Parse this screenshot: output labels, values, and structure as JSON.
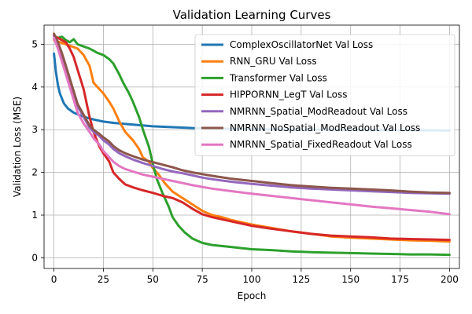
{
  "chart_data": {
    "type": "line",
    "title": "Validation Learning Curves",
    "xlabel": "Epoch",
    "ylabel": "Validation Loss (MSE)",
    "xlim": [
      -5,
      205
    ],
    "ylim": [
      -0.25,
      5.45
    ],
    "xticks": [
      0,
      25,
      50,
      75,
      100,
      125,
      150,
      175,
      200
    ],
    "yticks": [
      0,
      1,
      2,
      3,
      4,
      5
    ],
    "grid": true,
    "legend_position": "upper right",
    "series": [
      {
        "name": "ComplexOscillatorNet Val Loss",
        "color": "#1f77b4",
        "x": [
          0,
          1,
          2,
          3,
          5,
          7,
          10,
          13,
          16,
          20,
          25,
          30,
          40,
          50,
          60,
          70,
          80,
          90,
          100,
          120,
          140,
          160,
          180,
          200
        ],
        "y": [
          4.78,
          4.35,
          4.05,
          3.85,
          3.62,
          3.5,
          3.4,
          3.34,
          3.29,
          3.24,
          3.19,
          3.16,
          3.12,
          3.08,
          3.06,
          3.04,
          3.03,
          3.02,
          3.01,
          3.0,
          3.0,
          2.99,
          2.99,
          2.98
        ]
      },
      {
        "name": "RNN_GRU Val Loss",
        "color": "#ff7f0e",
        "x": [
          0,
          3,
          6,
          9,
          12,
          15,
          18,
          20,
          22,
          25,
          28,
          30,
          33,
          36,
          40,
          43,
          45,
          48,
          50,
          53,
          56,
          60,
          65,
          70,
          75,
          80,
          85,
          90,
          100,
          110,
          120,
          130,
          140,
          150,
          160,
          170,
          180,
          190,
          200
        ],
        "y": [
          5.1,
          5.05,
          5.0,
          4.95,
          4.9,
          4.75,
          4.5,
          4.1,
          4.0,
          3.85,
          3.65,
          3.5,
          3.2,
          2.95,
          2.75,
          2.55,
          2.35,
          2.25,
          2.1,
          1.95,
          1.75,
          1.55,
          1.4,
          1.25,
          1.1,
          1.0,
          0.95,
          0.88,
          0.78,
          0.7,
          0.62,
          0.56,
          0.5,
          0.47,
          0.45,
          0.43,
          0.41,
          0.4,
          0.38
        ]
      },
      {
        "name": "Transformer Val Loss",
        "color": "#2ca02c",
        "x": [
          0,
          2,
          4,
          6,
          8,
          10,
          12,
          15,
          18,
          20,
          22,
          25,
          28,
          30,
          33,
          35,
          38,
          40,
          43,
          45,
          48,
          50,
          52,
          55,
          58,
          60,
          63,
          66,
          70,
          75,
          80,
          90,
          100,
          110,
          120,
          130,
          140,
          150,
          160,
          170,
          180,
          190,
          200
        ],
        "y": [
          5.2,
          5.15,
          5.18,
          5.1,
          5.05,
          5.12,
          5.0,
          4.95,
          4.9,
          4.85,
          4.8,
          4.75,
          4.65,
          4.55,
          4.3,
          4.1,
          3.85,
          3.65,
          3.3,
          3.0,
          2.6,
          2.2,
          1.85,
          1.5,
          1.2,
          0.95,
          0.75,
          0.6,
          0.45,
          0.35,
          0.3,
          0.25,
          0.2,
          0.18,
          0.15,
          0.13,
          0.12,
          0.11,
          0.1,
          0.09,
          0.08,
          0.08,
          0.07
        ]
      },
      {
        "name": "HIPPORNN_LegT Val Loss",
        "color": "#d62728",
        "x": [
          0,
          2,
          4,
          6,
          8,
          10,
          12,
          15,
          18,
          20,
          23,
          25,
          28,
          30,
          33,
          36,
          40,
          45,
          50,
          55,
          60,
          65,
          70,
          75,
          80,
          90,
          100,
          110,
          120,
          130,
          140,
          150,
          160,
          170,
          180,
          190,
          200
        ],
        "y": [
          5.2,
          5.15,
          5.1,
          5.05,
          4.9,
          4.7,
          4.4,
          3.95,
          3.3,
          2.95,
          2.6,
          2.45,
          2.25,
          2.0,
          1.85,
          1.72,
          1.65,
          1.58,
          1.52,
          1.45,
          1.4,
          1.3,
          1.15,
          1.02,
          0.95,
          0.85,
          0.75,
          0.68,
          0.62,
          0.56,
          0.52,
          0.5,
          0.48,
          0.45,
          0.44,
          0.43,
          0.42
        ]
      },
      {
        "name": "NMRNN_Spatial_ModReadout Val Loss",
        "color": "#9467bd",
        "x": [
          0,
          2,
          4,
          6,
          8,
          10,
          12,
          15,
          18,
          20,
          23,
          25,
          28,
          30,
          33,
          36,
          40,
          45,
          50,
          55,
          60,
          65,
          70,
          75,
          80,
          90,
          100,
          110,
          120,
          130,
          140,
          150,
          160,
          170,
          180,
          190,
          200
        ],
        "y": [
          5.2,
          5.0,
          4.75,
          4.45,
          4.15,
          3.85,
          3.55,
          3.3,
          3.05,
          2.95,
          2.85,
          2.75,
          2.65,
          2.55,
          2.45,
          2.38,
          2.3,
          2.22,
          2.15,
          2.08,
          2.02,
          1.98,
          1.93,
          1.88,
          1.84,
          1.78,
          1.73,
          1.69,
          1.65,
          1.62,
          1.6,
          1.58,
          1.56,
          1.54,
          1.52,
          1.51,
          1.5
        ]
      },
      {
        "name": "NMRNN_NoSpatial_ModReadout Val Loss",
        "color": "#8c564b",
        "x": [
          0,
          2,
          4,
          6,
          8,
          10,
          12,
          15,
          18,
          20,
          23,
          25,
          28,
          30,
          33,
          36,
          40,
          45,
          50,
          55,
          60,
          65,
          70,
          75,
          80,
          90,
          100,
          110,
          120,
          130,
          140,
          150,
          160,
          170,
          180,
          190,
          200
        ],
        "y": [
          5.25,
          5.05,
          4.8,
          4.5,
          4.2,
          3.9,
          3.6,
          3.35,
          3.1,
          3.0,
          2.9,
          2.82,
          2.72,
          2.62,
          2.52,
          2.45,
          2.38,
          2.3,
          2.24,
          2.18,
          2.12,
          2.05,
          2.0,
          1.96,
          1.92,
          1.85,
          1.8,
          1.75,
          1.7,
          1.67,
          1.64,
          1.62,
          1.6,
          1.58,
          1.55,
          1.53,
          1.52
        ]
      },
      {
        "name": "NMRNN_Spatial_FixedReadout Val Loss",
        "color": "#e377c2",
        "x": [
          0,
          2,
          4,
          6,
          8,
          10,
          12,
          15,
          18,
          20,
          23,
          25,
          28,
          30,
          33,
          36,
          40,
          45,
          50,
          55,
          60,
          65,
          70,
          75,
          80,
          90,
          100,
          110,
          120,
          130,
          140,
          150,
          160,
          170,
          180,
          190,
          200
        ],
        "y": [
          5.15,
          4.9,
          4.6,
          4.3,
          4.0,
          3.7,
          3.4,
          3.15,
          2.95,
          2.8,
          2.65,
          2.5,
          2.35,
          2.25,
          2.15,
          2.08,
          2.02,
          1.95,
          1.9,
          1.85,
          1.8,
          1.75,
          1.7,
          1.66,
          1.62,
          1.56,
          1.5,
          1.45,
          1.4,
          1.35,
          1.3,
          1.25,
          1.2,
          1.16,
          1.12,
          1.08,
          1.02
        ]
      }
    ]
  }
}
